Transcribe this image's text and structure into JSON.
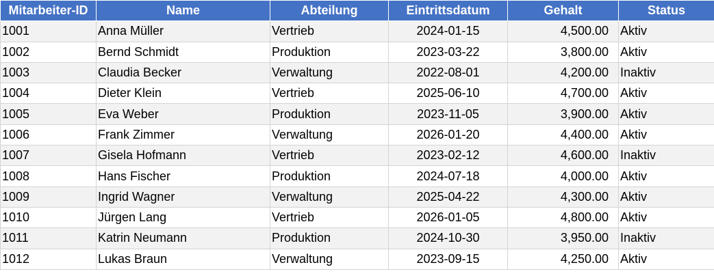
{
  "table": {
    "header": [
      "Mitarbeiter-ID",
      "Name",
      "Abteilung",
      "Eintrittsdatum",
      "Gehalt",
      "Status"
    ],
    "rows": [
      [
        "1001",
        "Anna Müller",
        "Vertrieb",
        "2024-01-15",
        "4,500.00",
        "Aktiv"
      ],
      [
        "1002",
        "Bernd Schmidt",
        "Produktion",
        "2023-03-22",
        "3,800.00",
        "Aktiv"
      ],
      [
        "1003",
        "Claudia Becker",
        "Verwaltung",
        "2022-08-01",
        "4,200.00",
        "Inaktiv"
      ],
      [
        "1004",
        "Dieter Klein",
        "Vertrieb",
        "2025-06-10",
        "4,700.00",
        "Aktiv"
      ],
      [
        "1005",
        "Eva Weber",
        "Produktion",
        "2023-11-05",
        "3,900.00",
        "Aktiv"
      ],
      [
        "1006",
        "Frank Zimmer",
        "Verwaltung",
        "2026-01-20",
        "4,400.00",
        "Aktiv"
      ],
      [
        "1007",
        "Gisela Hofmann",
        "Vertrieb",
        "2023-02-12",
        "4,600.00",
        "Inaktiv"
      ],
      [
        "1008",
        "Hans Fischer",
        "Produktion",
        "2024-07-18",
        "4,000.00",
        "Aktiv"
      ],
      [
        "1009",
        "Ingrid Wagner",
        "Verwaltung",
        "2025-04-22",
        "4,300.00",
        "Aktiv"
      ],
      [
        "1010",
        "Jürgen Lang",
        "Vertrieb",
        "2026-01-05",
        "4,800.00",
        "Aktiv"
      ],
      [
        "1011",
        "Katrin Neumann",
        "Produktion",
        "2024-10-30",
        "3,950.00",
        "Inaktiv"
      ],
      [
        "1012",
        "Lukas Braun",
        "Verwaltung",
        "2023-09-15",
        "4,250.00",
        "Aktiv"
      ]
    ]
  }
}
